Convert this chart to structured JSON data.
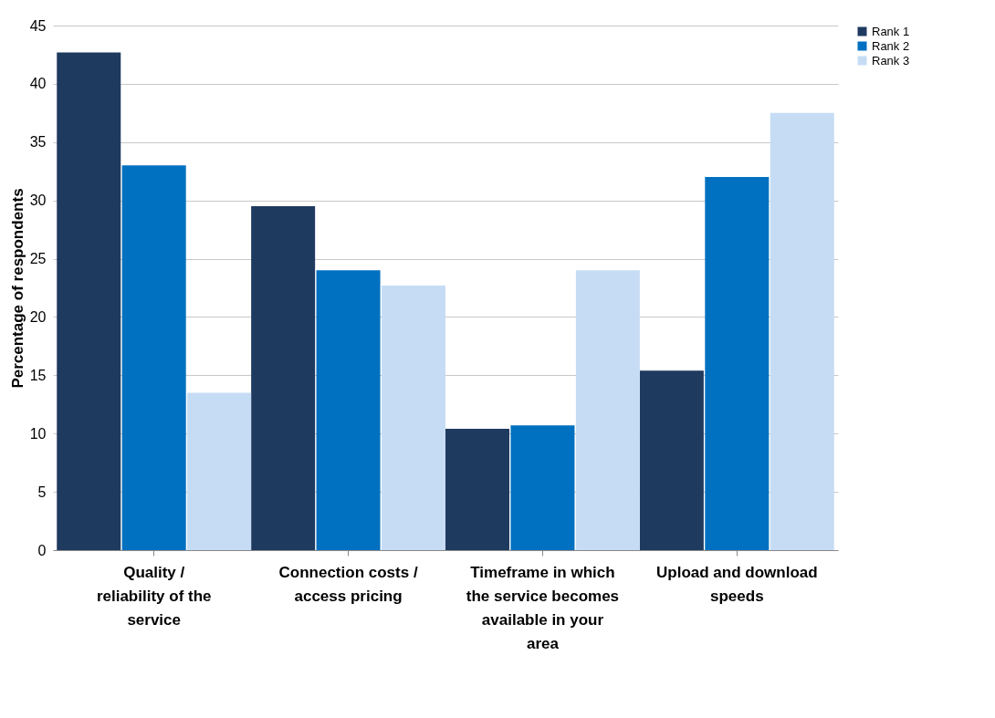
{
  "chart_data": {
    "type": "bar",
    "ylabel": "Percentage of respondents",
    "categories": [
      "Quality / reliability of the service",
      "Connection costs / access pricing",
      "Timeframe in which the service becomes available in your area",
      "Upload and download speeds"
    ],
    "series": [
      {
        "name": "Rank 1",
        "color": "#1f3a5f",
        "values": [
          42.7,
          29.5,
          10.4,
          15.4
        ]
      },
      {
        "name": "Rank 2",
        "color": "#0070c0",
        "values": [
          33.0,
          24.0,
          10.7,
          32.0
        ]
      },
      {
        "name": "Rank 3",
        "color": "#c6dcf4",
        "values": [
          13.5,
          22.7,
          24.0,
          37.5
        ]
      }
    ],
    "ylim": [
      0,
      45
    ],
    "yticks": [
      0,
      5,
      10,
      15,
      20,
      25,
      30,
      35,
      40,
      45
    ],
    "grid": "y",
    "legend": "right"
  }
}
